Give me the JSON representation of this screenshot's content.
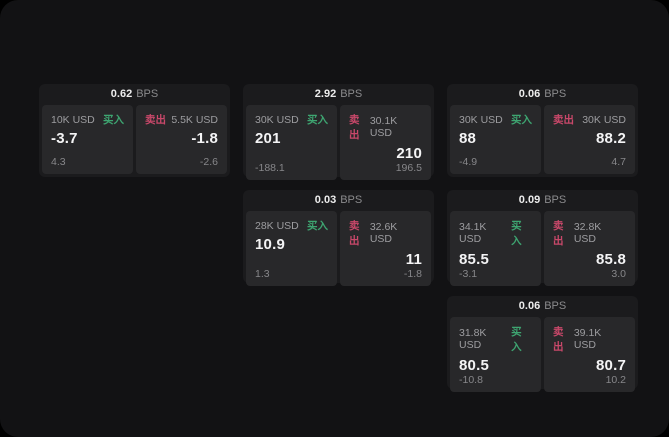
{
  "units": {
    "bps": "BPS"
  },
  "labels": {
    "buy": "买入",
    "sell": "卖出"
  },
  "colors": {
    "buy_tag": "#3ea571",
    "sell_tag": "#c9486a",
    "background": "#000000",
    "screen": "#121214",
    "card": "#1b1b1d",
    "panel": "#28282a"
  },
  "cards": [
    {
      "bps": "0.62",
      "buy": {
        "amount": "10K USD",
        "price": "-3.7",
        "change": "4.3"
      },
      "sell": {
        "amount": "5.5K USD",
        "price": "-1.8",
        "change": "-2.6"
      }
    },
    {
      "bps": "2.92",
      "buy": {
        "amount": "30K USD",
        "price": "201",
        "change": "-188.1"
      },
      "sell": {
        "amount": "30.1K USD",
        "price": "210",
        "change": "196.5"
      }
    },
    {
      "bps": "0.06",
      "buy": {
        "amount": "30K USD",
        "price": "88",
        "change": "-4.9"
      },
      "sell": {
        "amount": "30K USD",
        "price": "88.2",
        "change": "4.7"
      }
    },
    {
      "bps": "0.03",
      "buy": {
        "amount": "28K USD",
        "price": "10.9",
        "change": "1.3"
      },
      "sell": {
        "amount": "32.6K USD",
        "price": "11",
        "change": "-1.8"
      }
    },
    {
      "bps": "0.09",
      "buy": {
        "amount": "34.1K USD",
        "price": "85.5",
        "change": "-3.1"
      },
      "sell": {
        "amount": "32.8K USD",
        "price": "85.8",
        "change": "3.0"
      }
    },
    {
      "bps": "0.06",
      "buy": {
        "amount": "31.8K USD",
        "price": "80.5",
        "change": "-10.8"
      },
      "sell": {
        "amount": "39.1K USD",
        "price": "80.7",
        "change": "10.2"
      }
    }
  ]
}
